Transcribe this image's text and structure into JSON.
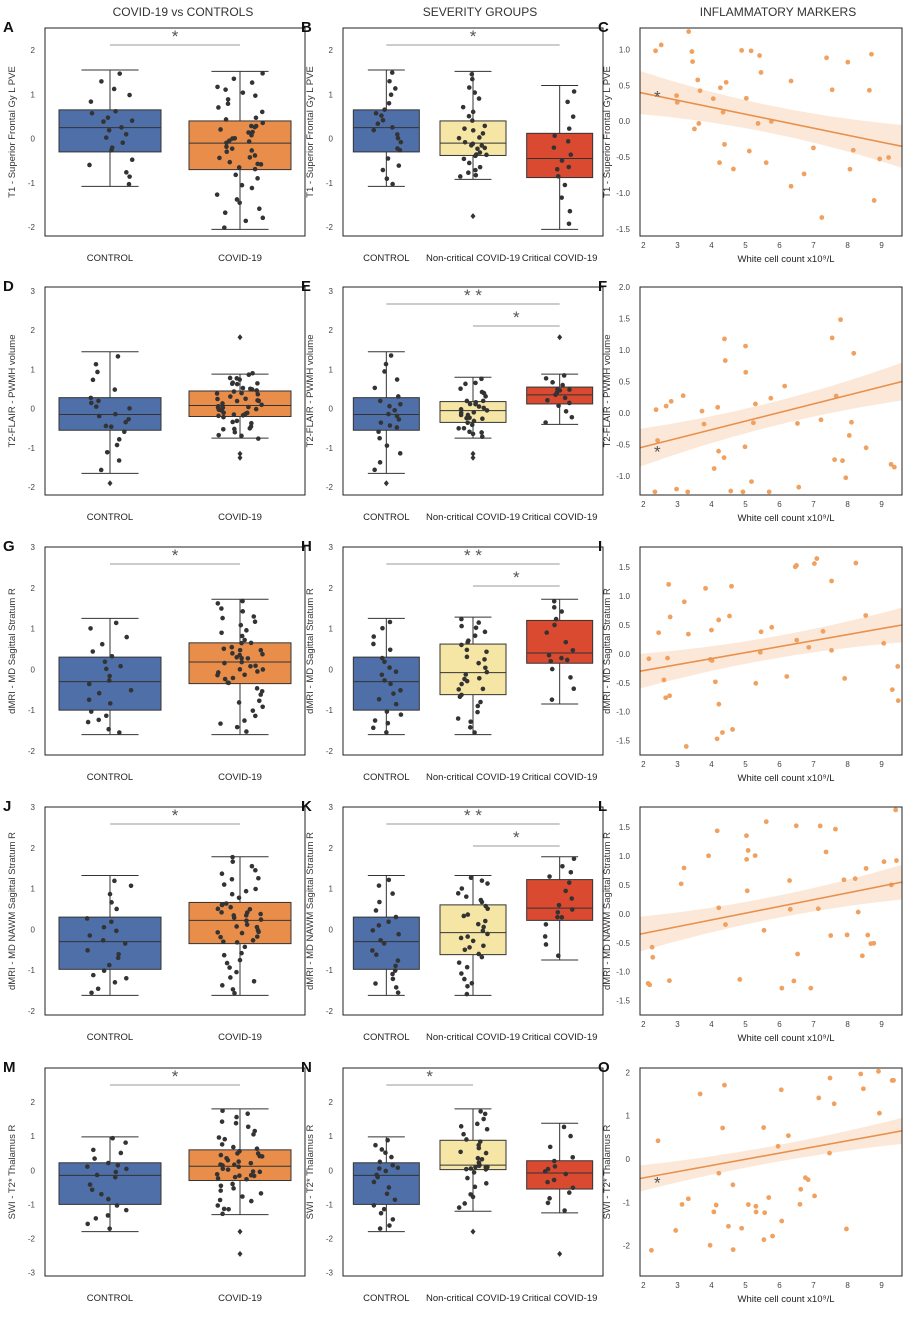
{
  "column_headers": [
    "COVID-19 vs CONTROLS",
    "SEVERITY GROUPS",
    "INFLAMMATORY MARKERS"
  ],
  "colors": {
    "control": "#4e6fa8",
    "covid": "#e98d4b",
    "noncritical": "#f5e6a6",
    "critical": "#d94a30",
    "scatter": "#f0a15f",
    "band": "#fce5d4",
    "star": "#555555"
  },
  "chart_data": [
    {
      "letter": "A",
      "type": "box",
      "ylabel": "T1 - Superior Frontal Gy L PVE",
      "ylim": [
        -2.2,
        2.5
      ],
      "yticks": [
        -2,
        -1,
        0,
        1,
        2
      ],
      "categories": [
        "CONTROL",
        "COVID-19"
      ],
      "groups": [
        "control",
        "covid"
      ],
      "boxes": [
        {
          "q1": -0.3,
          "median": 0.25,
          "q3": 0.65,
          "lo": -1.08,
          "hi": 1.55
        },
        {
          "q1": -0.7,
          "median": -0.1,
          "q3": 0.4,
          "lo": -2.05,
          "hi": 1.52
        }
      ],
      "points": [
        22,
        50
      ],
      "sig": [
        {
          "from": 0,
          "to": 1,
          "stars": "*"
        }
      ]
    },
    {
      "letter": "B",
      "type": "box",
      "ylabel": "T1 - Superior Frontal Gy L PVE",
      "ylim": [
        -2.2,
        2.5
      ],
      "yticks": [
        -2,
        -1,
        0,
        1,
        2
      ],
      "categories": [
        "CONTROL",
        "Non-critical COVID-19",
        "Critical COVID-19"
      ],
      "groups": [
        "control",
        "noncritical",
        "critical"
      ],
      "boxes": [
        {
          "q1": -0.3,
          "median": 0.25,
          "q3": 0.65,
          "lo": -1.08,
          "hi": 1.55
        },
        {
          "q1": -0.38,
          "median": -0.1,
          "q3": 0.4,
          "lo": -0.92,
          "hi": 1.52
        },
        {
          "q1": -0.88,
          "median": -0.45,
          "q3": 0.12,
          "lo": -2.05,
          "hi": 1.2
        }
      ],
      "points": [
        22,
        32,
        16
      ],
      "outliers": [
        [],
        [
          -1.75
        ],
        []
      ],
      "sig": [
        {
          "from": 0,
          "to": 2,
          "stars": "*"
        }
      ]
    },
    {
      "letter": "C",
      "type": "scatter",
      "ylabel": "T1 - Superior Frontal Gy L PVE",
      "xlabel": "White cell count x10⁹/L",
      "xlim": [
        1.9,
        9.6
      ],
      "ylim": [
        -1.6,
        1.3
      ],
      "xticks": [
        2,
        3,
        4,
        5,
        6,
        7,
        8,
        9
      ],
      "yticks": [
        -1.5,
        -1.0,
        -0.5,
        0.0,
        0.5,
        1.0
      ],
      "fit": [
        0.4,
        -0.35
      ],
      "seed": 3,
      "n": 42,
      "star": true
    },
    {
      "letter": "D",
      "type": "box",
      "ylabel": "T2-FLAIR - PWMH volume",
      "ylim": [
        -2.2,
        3.1
      ],
      "yticks": [
        -2,
        -1,
        0,
        1,
        2,
        3
      ],
      "categories": [
        "CONTROL",
        "COVID-19"
      ],
      "groups": [
        "control",
        "covid"
      ],
      "boxes": [
        {
          "q1": -0.55,
          "median": -0.15,
          "q3": 0.28,
          "lo": -1.65,
          "hi": 1.45
        },
        {
          "q1": -0.2,
          "median": 0.08,
          "q3": 0.45,
          "lo": -0.75,
          "hi": 0.88
        }
      ],
      "points": [
        22,
        50
      ],
      "outliers": [
        [
          -1.9
        ],
        [
          1.82,
          -1.15,
          -1.25
        ]
      ],
      "sig": []
    },
    {
      "letter": "E",
      "type": "box",
      "ylabel": "T2-FLAIR - PWMH volume",
      "ylim": [
        -2.2,
        3.1
      ],
      "yticks": [
        -2,
        -1,
        0,
        1,
        2,
        3
      ],
      "categories": [
        "CONTROL",
        "Non-critical COVID-19",
        "Critical COVID-19"
      ],
      "groups": [
        "control",
        "noncritical",
        "critical"
      ],
      "boxes": [
        {
          "q1": -0.55,
          "median": -0.15,
          "q3": 0.28,
          "lo": -1.65,
          "hi": 1.45
        },
        {
          "q1": -0.35,
          "median": -0.05,
          "q3": 0.18,
          "lo": -0.75,
          "hi": 0.8
        },
        {
          "q1": 0.12,
          "median": 0.35,
          "q3": 0.55,
          "lo": -0.4,
          "hi": 0.88
        }
      ],
      "points": [
        22,
        32,
        16
      ],
      "outliers": [
        [
          -1.9
        ],
        [
          -1.15,
          -1.25
        ],
        [
          1.82
        ]
      ],
      "sig": [
        {
          "from": 0,
          "to": 2,
          "stars": "* *"
        },
        {
          "from": 1,
          "to": 2,
          "stars": "*"
        }
      ]
    },
    {
      "letter": "F",
      "type": "scatter",
      "ylabel": "T2-FLAIR - PWMH volume",
      "xlabel": "White cell count x10⁹/L",
      "xlim": [
        1.9,
        9.6
      ],
      "ylim": [
        -1.3,
        2.0
      ],
      "xticks": [
        2,
        3,
        4,
        5,
        6,
        7,
        8,
        9
      ],
      "yticks": [
        -1.0,
        -0.5,
        0.0,
        0.5,
        1.0,
        1.5,
        2.0
      ],
      "fit": [
        -0.55,
        0.5
      ],
      "seed": 11,
      "n": 42,
      "star": true
    },
    {
      "letter": "G",
      "type": "box",
      "ylabel": "dMRI - MD Sagittal Stratum R",
      "ylim": [
        -2.1,
        3.0
      ],
      "yticks": [
        -2,
        -1,
        0,
        1,
        2,
        3
      ],
      "categories": [
        "CONTROL",
        "COVID-19"
      ],
      "groups": [
        "control",
        "covid"
      ],
      "boxes": [
        {
          "q1": -1.0,
          "median": -0.3,
          "q3": 0.3,
          "lo": -1.6,
          "hi": 1.25
        },
        {
          "q1": -0.35,
          "median": 0.18,
          "q3": 0.65,
          "lo": -1.6,
          "hi": 1.72
        }
      ],
      "points": [
        22,
        50
      ],
      "sig": [
        {
          "from": 0,
          "to": 1,
          "stars": "*"
        }
      ]
    },
    {
      "letter": "H",
      "type": "box",
      "ylabel": "dMRI - MD Sagittal Stratum R",
      "ylim": [
        -2.1,
        3.0
      ],
      "yticks": [
        -2,
        -1,
        0,
        1,
        2,
        3
      ],
      "categories": [
        "CONTROL",
        "Non-critical COVID-19",
        "Critical COVID-19"
      ],
      "groups": [
        "control",
        "noncritical",
        "critical"
      ],
      "boxes": [
        {
          "q1": -1.0,
          "median": -0.3,
          "q3": 0.3,
          "lo": -1.6,
          "hi": 1.25
        },
        {
          "q1": -0.62,
          "median": -0.08,
          "q3": 0.62,
          "lo": -1.6,
          "hi": 1.28
        },
        {
          "q1": 0.15,
          "median": 0.4,
          "q3": 1.2,
          "lo": -0.85,
          "hi": 1.72
        }
      ],
      "points": [
        22,
        32,
        16
      ],
      "sig": [
        {
          "from": 0,
          "to": 2,
          "stars": "* *"
        },
        {
          "from": 1,
          "to": 2,
          "stars": "*"
        }
      ]
    },
    {
      "letter": "I",
      "type": "scatter",
      "ylabel": "dMRI - MD Sagittal Stratum R",
      "xlabel": "White cell count x10⁹/L",
      "xlim": [
        1.9,
        9.6
      ],
      "ylim": [
        -1.75,
        1.85
      ],
      "xticks": [
        2,
        3,
        4,
        5,
        6,
        7,
        8,
        9
      ],
      "yticks": [
        -1.5,
        -1.0,
        -0.5,
        0.0,
        0.5,
        1.0,
        1.5
      ],
      "fit": [
        -0.3,
        0.5
      ],
      "seed": 23,
      "n": 44,
      "star": false
    },
    {
      "letter": "J",
      "type": "box",
      "ylabel": "dMRI - MD NAWM Sagittal Stratum R",
      "ylim": [
        -2.1,
        3.0
      ],
      "yticks": [
        -2,
        -1,
        0,
        1,
        2,
        3
      ],
      "categories": [
        "CONTROL",
        "COVID-19"
      ],
      "groups": [
        "control",
        "covid"
      ],
      "boxes": [
        {
          "q1": -0.98,
          "median": -0.3,
          "q3": 0.3,
          "lo": -1.62,
          "hi": 1.32
        },
        {
          "q1": -0.35,
          "median": 0.22,
          "q3": 0.66,
          "lo": -1.62,
          "hi": 1.78
        }
      ],
      "points": [
        22,
        50
      ],
      "sig": [
        {
          "from": 0,
          "to": 1,
          "stars": "*"
        }
      ]
    },
    {
      "letter": "K",
      "type": "box",
      "ylabel": "dMRI - MD NAWM Sagittal Stratum R",
      "ylim": [
        -2.1,
        3.0
      ],
      "yticks": [
        -2,
        -1,
        0,
        1,
        2,
        3
      ],
      "categories": [
        "CONTROL",
        "Non-critical COVID-19",
        "Critical COVID-19"
      ],
      "groups": [
        "control",
        "noncritical",
        "critical"
      ],
      "boxes": [
        {
          "q1": -0.98,
          "median": -0.3,
          "q3": 0.3,
          "lo": -1.62,
          "hi": 1.32
        },
        {
          "q1": -0.62,
          "median": -0.08,
          "q3": 0.6,
          "lo": -1.62,
          "hi": 1.32
        },
        {
          "q1": 0.22,
          "median": 0.52,
          "q3": 1.22,
          "lo": -0.75,
          "hi": 1.78
        }
      ],
      "points": [
        22,
        32,
        16
      ],
      "sig": [
        {
          "from": 0,
          "to": 2,
          "stars": "* *"
        },
        {
          "from": 1,
          "to": 2,
          "stars": "*"
        }
      ]
    },
    {
      "letter": "L",
      "type": "scatter",
      "ylabel": "dMRI - MD NAWM Sagittal Stratum R",
      "xlabel": "White cell count x10⁹/L",
      "xlim": [
        1.9,
        9.6
      ],
      "ylim": [
        -1.75,
        1.85
      ],
      "xticks": [
        2,
        3,
        4,
        5,
        6,
        7,
        8,
        9
      ],
      "yticks": [
        -1.5,
        -1.0,
        -0.5,
        0.0,
        0.5,
        1.0,
        1.5
      ],
      "fit": [
        -0.35,
        0.55
      ],
      "seed": 41,
      "n": 44,
      "star": false
    },
    {
      "letter": "M",
      "type": "box",
      "ylabel": "SWI - T2* Thalamus R",
      "ylim": [
        -3.1,
        3.0
      ],
      "yticks": [
        -3,
        -2,
        -1,
        0,
        1,
        2
      ],
      "categories": [
        "CONTROL",
        "COVID-19"
      ],
      "groups": [
        "control",
        "covid"
      ],
      "boxes": [
        {
          "q1": -1.0,
          "median": -0.15,
          "q3": 0.22,
          "lo": -1.8,
          "hi": 0.98
        },
        {
          "q1": -0.3,
          "median": 0.12,
          "q3": 0.6,
          "lo": -1.3,
          "hi": 1.8
        }
      ],
      "points": [
        22,
        50
      ],
      "outliers": [
        [],
        [
          -2.45,
          -1.8
        ]
      ],
      "sig": [
        {
          "from": 0,
          "to": 1,
          "stars": "*"
        }
      ]
    },
    {
      "letter": "N",
      "type": "box",
      "ylabel": "SWI - T2* Thalamus R",
      "ylim": [
        -3.1,
        3.0
      ],
      "yticks": [
        -3,
        -2,
        -1,
        0,
        1,
        2
      ],
      "categories": [
        "CONTROL",
        "Non-critical COVID-19",
        "Critical COVID-19"
      ],
      "groups": [
        "control",
        "noncritical",
        "critical"
      ],
      "boxes": [
        {
          "q1": -1.0,
          "median": -0.15,
          "q3": 0.22,
          "lo": -1.8,
          "hi": 0.98
        },
        {
          "q1": 0.02,
          "median": 0.15,
          "q3": 0.88,
          "lo": -1.2,
          "hi": 1.8
        },
        {
          "q1": -0.55,
          "median": -0.08,
          "q3": 0.28,
          "lo": -1.25,
          "hi": 1.38
        }
      ],
      "points": [
        22,
        32,
        16
      ],
      "outliers": [
        [],
        [
          -1.8
        ],
        [
          -2.45
        ]
      ],
      "sig": [
        {
          "from": 0,
          "to": 1,
          "stars": "*"
        }
      ]
    },
    {
      "letter": "O",
      "type": "scatter",
      "ylabel": "SWI - T2* Thalamus R",
      "xlabel": "White cell count x10⁹/L",
      "xlim": [
        1.9,
        9.6
      ],
      "ylim": [
        -2.7,
        2.1
      ],
      "xticks": [
        2,
        3,
        4,
        5,
        6,
        7,
        8,
        9
      ],
      "yticks": [
        -2,
        -1,
        0,
        1,
        2
      ],
      "fit": [
        -0.45,
        0.65
      ],
      "seed": 57,
      "n": 44,
      "star": true
    }
  ]
}
